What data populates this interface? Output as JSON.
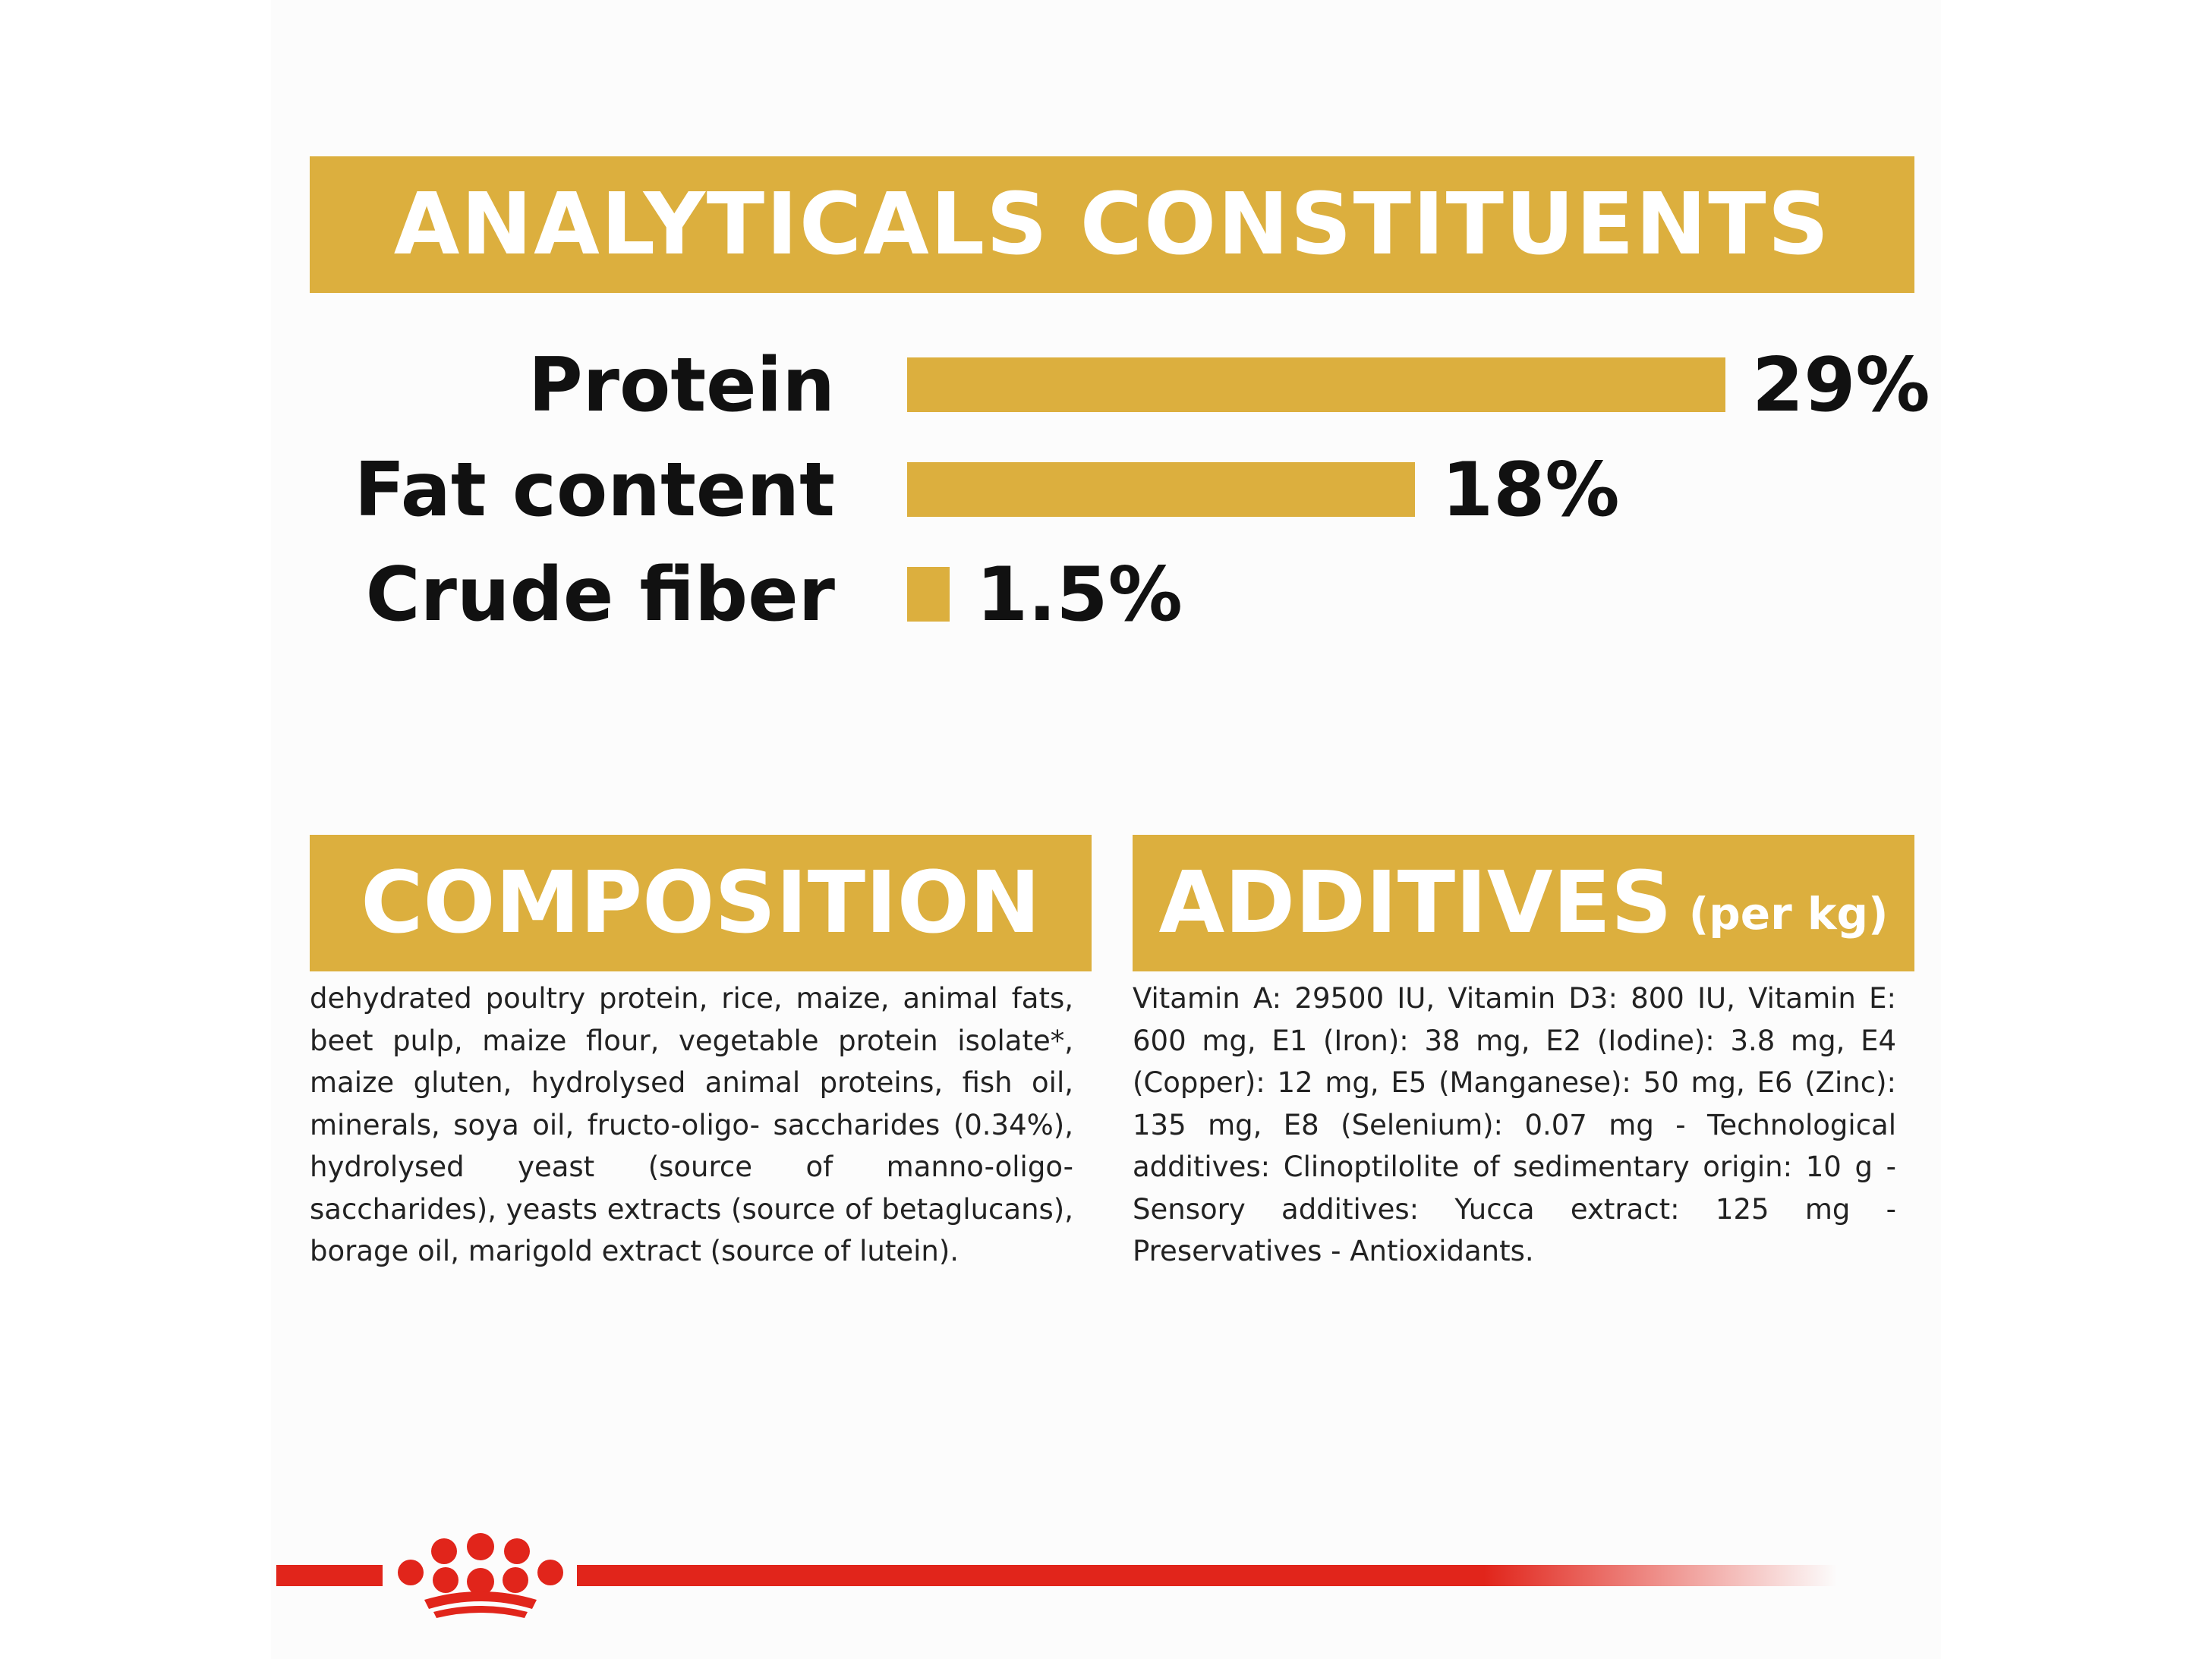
{
  "headings": {
    "analytics": "ANALYTICALS CONSTITUENTS",
    "composition": "COMPOSITION",
    "additives": "ADDITIVES",
    "additives_suffix": "(per kg)"
  },
  "chart_data": {
    "type": "bar",
    "orientation": "horizontal",
    "title": "ANALYTICALS CONSTITUENTS",
    "categories": [
      "Protein",
      "Fat content",
      "Crude fiber"
    ],
    "values": [
      29,
      18,
      1.5
    ],
    "value_labels": [
      "29%",
      "18%",
      "1.5%"
    ],
    "unit": "%",
    "xlim": [
      0,
      29
    ],
    "grid": false,
    "legend": "none",
    "bar_color": "#dcaf3e"
  },
  "composition_text": "dehydrated poultry protein, rice, maize, animal fats, beet pulp, maize flour, vegetable protein isolate*, maize gluten, hydrolysed animal proteins, fish oil, minerals, soya oil, fructo-oligo- saccharides (0.34%), hydrolysed yeast (source of manno-oligo-saccharides), yeasts extracts (source of betaglucans), borage oil, marigold extract (source of lutein).",
  "additives_text": "Vitamin A: 29500 IU, Vitamin D3: 800 IU, Vitamin E: 600 mg, E1 (Iron): 38 mg, E2 (Iodine): 3.8 mg, E4 (Copper): 12 mg, E5 (Manganese): 50 mg, E6 (Zinc): 135 mg, E8 (Selenium): 0.07 mg - Technological additives: Clinoptilolite of sedimentary origin: 10 g - Sensory additives: Yucca extract: 125 mg - Preservatives - Antioxidants.",
  "colors": {
    "gold": "#dcaf3e",
    "brand_red": "#e1251b",
    "text": "#111111"
  },
  "icons": {
    "logo": "crown-icon"
  }
}
